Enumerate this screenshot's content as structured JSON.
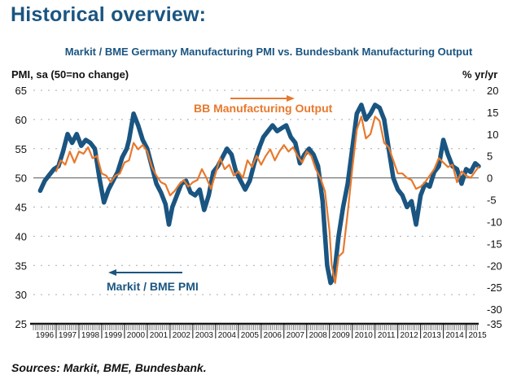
{
  "page": {
    "title": "Historical overview:",
    "sources": "Sources: Markit, BME, Bundesbank."
  },
  "colors": {
    "pmi": "#1a5581",
    "bb": "#e8792c",
    "title": "#1a5581"
  },
  "chart_data": {
    "type": "line",
    "title": "Markit / BME Germany Manufacturing PMI vs. Bundesbank Manufacturing Output",
    "ylabel_left": "PMI, sa (50=no change)",
    "ylabel_right": "% yr/yr",
    "xlabel": "",
    "ylim_left": [
      25,
      65
    ],
    "yticks_left": [
      65,
      60,
      55,
      50,
      45,
      40,
      35,
      30,
      25
    ],
    "ylim_right": [
      -35,
      20
    ],
    "yticks_right": [
      20,
      15,
      10,
      5,
      0,
      -5,
      -10,
      -15,
      -20,
      -25,
      -30,
      -35
    ],
    "xticks": [
      "1996",
      "1997",
      "1998",
      "1999",
      "2000",
      "2001",
      "2002",
      "2003",
      "2004",
      "2005",
      "2006",
      "2007",
      "2008",
      "2009",
      "2010",
      "2011",
      "2012",
      "2013",
      "2014",
      "2015"
    ],
    "xlim": [
      1996.0,
      2015.55
    ],
    "grid": "dotted horizontal",
    "reference_line": {
      "axis": "left",
      "value": 50
    },
    "legend": [
      {
        "name": "BB Manufacturing Output",
        "axis": "right",
        "arrow": "right",
        "placement": "top-center"
      },
      {
        "name": "Markit / BME PMI",
        "axis": "left",
        "arrow": "left",
        "placement": "bottom-left"
      }
    ],
    "series": [
      {
        "name": "Markit / BME PMI",
        "axis": "left",
        "x": [
          1996.3,
          1996.5,
          1996.7,
          1996.9,
          1997.1,
          1997.3,
          1997.5,
          1997.7,
          1997.9,
          1998.1,
          1998.3,
          1998.5,
          1998.7,
          1998.9,
          1999.1,
          1999.3,
          1999.5,
          1999.7,
          1999.9,
          2000.1,
          2000.2,
          2000.4,
          2000.6,
          2000.8,
          2001.0,
          2001.2,
          2001.4,
          2001.6,
          2001.8,
          2001.95,
          2002.1,
          2002.3,
          2002.5,
          2002.7,
          2002.9,
          2003.1,
          2003.3,
          2003.5,
          2003.7,
          2003.9,
          2004.1,
          2004.3,
          2004.5,
          2004.7,
          2004.9,
          2005.1,
          2005.3,
          2005.5,
          2005.7,
          2005.9,
          2006.1,
          2006.3,
          2006.5,
          2006.7,
          2006.9,
          2007.1,
          2007.3,
          2007.5,
          2007.7,
          2007.9,
          2008.1,
          2008.3,
          2008.5,
          2008.7,
          2008.9,
          2009.05,
          2009.2,
          2009.4,
          2009.6,
          2009.8,
          2010.0,
          2010.2,
          2010.4,
          2010.6,
          2010.8,
          2011.0,
          2011.2,
          2011.4,
          2011.6,
          2011.8,
          2012.0,
          2012.2,
          2012.4,
          2012.6,
          2012.8,
          2013.0,
          2013.2,
          2013.4,
          2013.6,
          2013.8,
          2014.0,
          2014.2,
          2014.4,
          2014.6,
          2014.8,
          2015.0,
          2015.2,
          2015.4,
          2015.55
        ],
        "values": [
          47.8,
          49.5,
          50.5,
          51.5,
          52.0,
          54.5,
          57.5,
          56.0,
          57.5,
          55.5,
          56.5,
          56.0,
          55.0,
          50.0,
          45.8,
          48.0,
          49.5,
          51.0,
          53.5,
          55.0,
          56.5,
          61.0,
          59.0,
          56.5,
          55.0,
          52.0,
          49.0,
          47.5,
          45.5,
          42.0,
          45.0,
          47.0,
          49.0,
          49.5,
          47.5,
          47.0,
          48.0,
          44.5,
          47.0,
          51.0,
          52.0,
          53.5,
          55.0,
          54.0,
          51.0,
          49.5,
          48.0,
          49.5,
          52.5,
          55.0,
          57.0,
          58.0,
          59.0,
          58.0,
          58.5,
          59.0,
          57.0,
          56.0,
          52.5,
          54.0,
          55.0,
          54.0,
          52.0,
          46.0,
          35.0,
          32.0,
          33.0,
          40.0,
          45.0,
          49.0,
          55.0,
          61.0,
          62.5,
          60.0,
          61.0,
          62.5,
          62.0,
          60.0,
          55.0,
          50.0,
          48.0,
          47.0,
          45.0,
          46.0,
          42.0,
          47.0,
          49.0,
          48.5,
          51.0,
          52.0,
          56.5,
          54.0,
          52.0,
          51.5,
          49.0,
          51.5,
          51.0,
          52.5,
          52.0
        ]
      },
      {
        "name": "BB Manufacturing Output",
        "axis": "right",
        "x": [
          1997.0,
          1997.2,
          1997.4,
          1997.6,
          1997.8,
          1998.0,
          1998.2,
          1998.4,
          1998.6,
          1998.8,
          1999.0,
          1999.2,
          1999.4,
          1999.6,
          1999.8,
          2000.0,
          2000.2,
          2000.4,
          2000.6,
          2000.8,
          2001.0,
          2001.2,
          2001.4,
          2001.6,
          2001.8,
          2002.0,
          2002.2,
          2002.4,
          2002.6,
          2002.8,
          2003.0,
          2003.2,
          2003.4,
          2003.6,
          2003.8,
          2004.0,
          2004.2,
          2004.4,
          2004.6,
          2004.8,
          2005.0,
          2005.2,
          2005.4,
          2005.6,
          2005.8,
          2006.0,
          2006.2,
          2006.4,
          2006.6,
          2006.8,
          2007.0,
          2007.2,
          2007.4,
          2007.6,
          2007.8,
          2008.0,
          2008.2,
          2008.4,
          2008.6,
          2008.8,
          2009.0,
          2009.1,
          2009.25,
          2009.4,
          2009.6,
          2009.8,
          2010.0,
          2010.2,
          2010.4,
          2010.6,
          2010.8,
          2011.0,
          2011.2,
          2011.4,
          2011.6,
          2011.8,
          2012.0,
          2012.2,
          2012.4,
          2012.6,
          2012.8,
          2013.0,
          2013.2,
          2013.4,
          2013.6,
          2013.8,
          2014.0,
          2014.2,
          2014.4,
          2014.6,
          2014.8,
          2015.0,
          2015.2,
          2015.4,
          2015.55
        ],
        "values": [
          1.5,
          4.0,
          3.0,
          6.0,
          3.5,
          6.0,
          5.5,
          7.0,
          4.5,
          5.0,
          1.0,
          0.5,
          -1.0,
          0.5,
          1.0,
          3.5,
          4.0,
          8.0,
          6.5,
          7.5,
          6.0,
          2.5,
          0.5,
          -1.0,
          -1.5,
          -4.0,
          -3.0,
          -1.5,
          -0.5,
          -2.0,
          -1.0,
          -0.5,
          2.0,
          0.0,
          -2.5,
          1.0,
          4.5,
          2.0,
          3.0,
          0.5,
          1.5,
          0.0,
          4.0,
          2.5,
          5.0,
          3.0,
          5.0,
          6.5,
          4.0,
          6.0,
          7.5,
          6.0,
          7.0,
          5.0,
          3.5,
          6.0,
          5.0,
          2.0,
          0.0,
          -3.0,
          -12.0,
          -20.0,
          -24.0,
          -18.0,
          -17.0,
          -8.0,
          2.0,
          11.0,
          14.0,
          9.0,
          10.0,
          14.0,
          13.0,
          8.0,
          7.0,
          4.0,
          1.0,
          1.0,
          0.0,
          -0.5,
          -2.5,
          -2.0,
          -1.0,
          0.5,
          2.0,
          4.5,
          3.5,
          2.5,
          3.0,
          -1.0,
          1.5,
          0.5,
          0.0,
          1.5,
          2.5
        ]
      }
    ]
  }
}
